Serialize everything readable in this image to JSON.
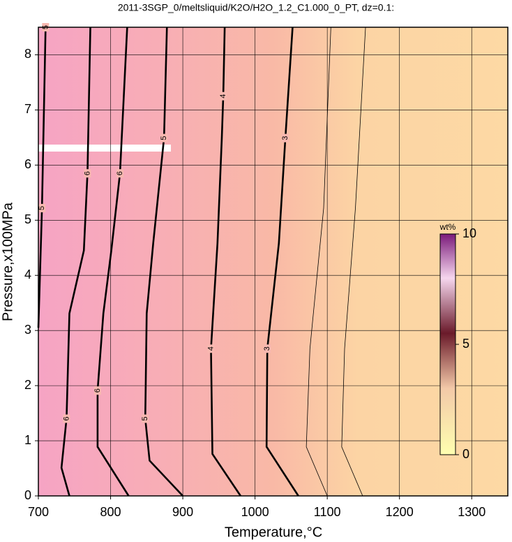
{
  "chart_data": {
    "type": "contour",
    "title": "2011-3SGP_0/meltsliquid/K2O/H2O_1.2_C1.000_0_PT, dz=0.1:",
    "xlabel": "Temperature,°C",
    "ylabel": "Pressure,x100MPa",
    "xlim": [
      700,
      1350
    ],
    "ylim": [
      0,
      8.5
    ],
    "xticks": [
      700,
      800,
      900,
      1000,
      1100,
      1200,
      1300
    ],
    "yticks": [
      0,
      1,
      2,
      3,
      4,
      5,
      6,
      7,
      8
    ],
    "grid": true,
    "contours": [
      {
        "level": 5,
        "bold": true,
        "labeled": true,
        "x": [
          700,
          705,
          710
        ],
        "y": [
          3.05,
          5.22,
          8.5
        ]
      },
      {
        "level": 6,
        "bold": true,
        "labeled": true,
        "x": [
          743,
          732,
          739,
          743,
          763,
          768,
          772
        ],
        "y": [
          0,
          0.51,
          1.4,
          3.31,
          4.45,
          5.85,
          8.5
        ]
      },
      {
        "level": 6,
        "bold": true,
        "labeled": true,
        "x": [
          825,
          782,
          782,
          790,
          801,
          813,
          823
        ],
        "y": [
          0,
          0.89,
          1.91,
          3.31,
          4.45,
          5.85,
          8.5
        ]
      },
      {
        "level": 5,
        "bold": true,
        "labeled": true,
        "x": [
          900,
          854,
          848,
          850,
          859,
          874,
          878
        ],
        "y": [
          0,
          0.64,
          1.4,
          3.31,
          4.58,
          6.49,
          8.5
        ]
      },
      {
        "level": 4,
        "bold": true,
        "labeled": true,
        "x": [
          980,
          941,
          939,
          948,
          954,
          956,
          958
        ],
        "y": [
          0,
          0.76,
          2.67,
          4.58,
          6.49,
          7.25,
          8.5
        ]
      },
      {
        "level": 3,
        "bold": true,
        "labeled": true,
        "x": [
          1060,
          1016,
          1017,
          1033,
          1042,
          1052
        ],
        "y": [
          0,
          0.89,
          2.67,
          4.58,
          6.49,
          8.5
        ]
      },
      {
        "level": 2.5,
        "bold": false,
        "labeled": false,
        "x": [
          1100,
          1071,
          1076,
          1095,
          1105
        ],
        "y": [
          0,
          0.89,
          2.67,
          5.22,
          8.5
        ]
      },
      {
        "level": 2,
        "bold": false,
        "labeled": false,
        "x": [
          1149,
          1120,
          1124,
          1139,
          1153
        ],
        "y": [
          0,
          0.89,
          2.67,
          5.22,
          8.5
        ]
      }
    ],
    "colorbar": {
      "label": "wt%",
      "lim": [
        0,
        10
      ],
      "ticks": [
        0,
        5,
        10
      ]
    }
  }
}
